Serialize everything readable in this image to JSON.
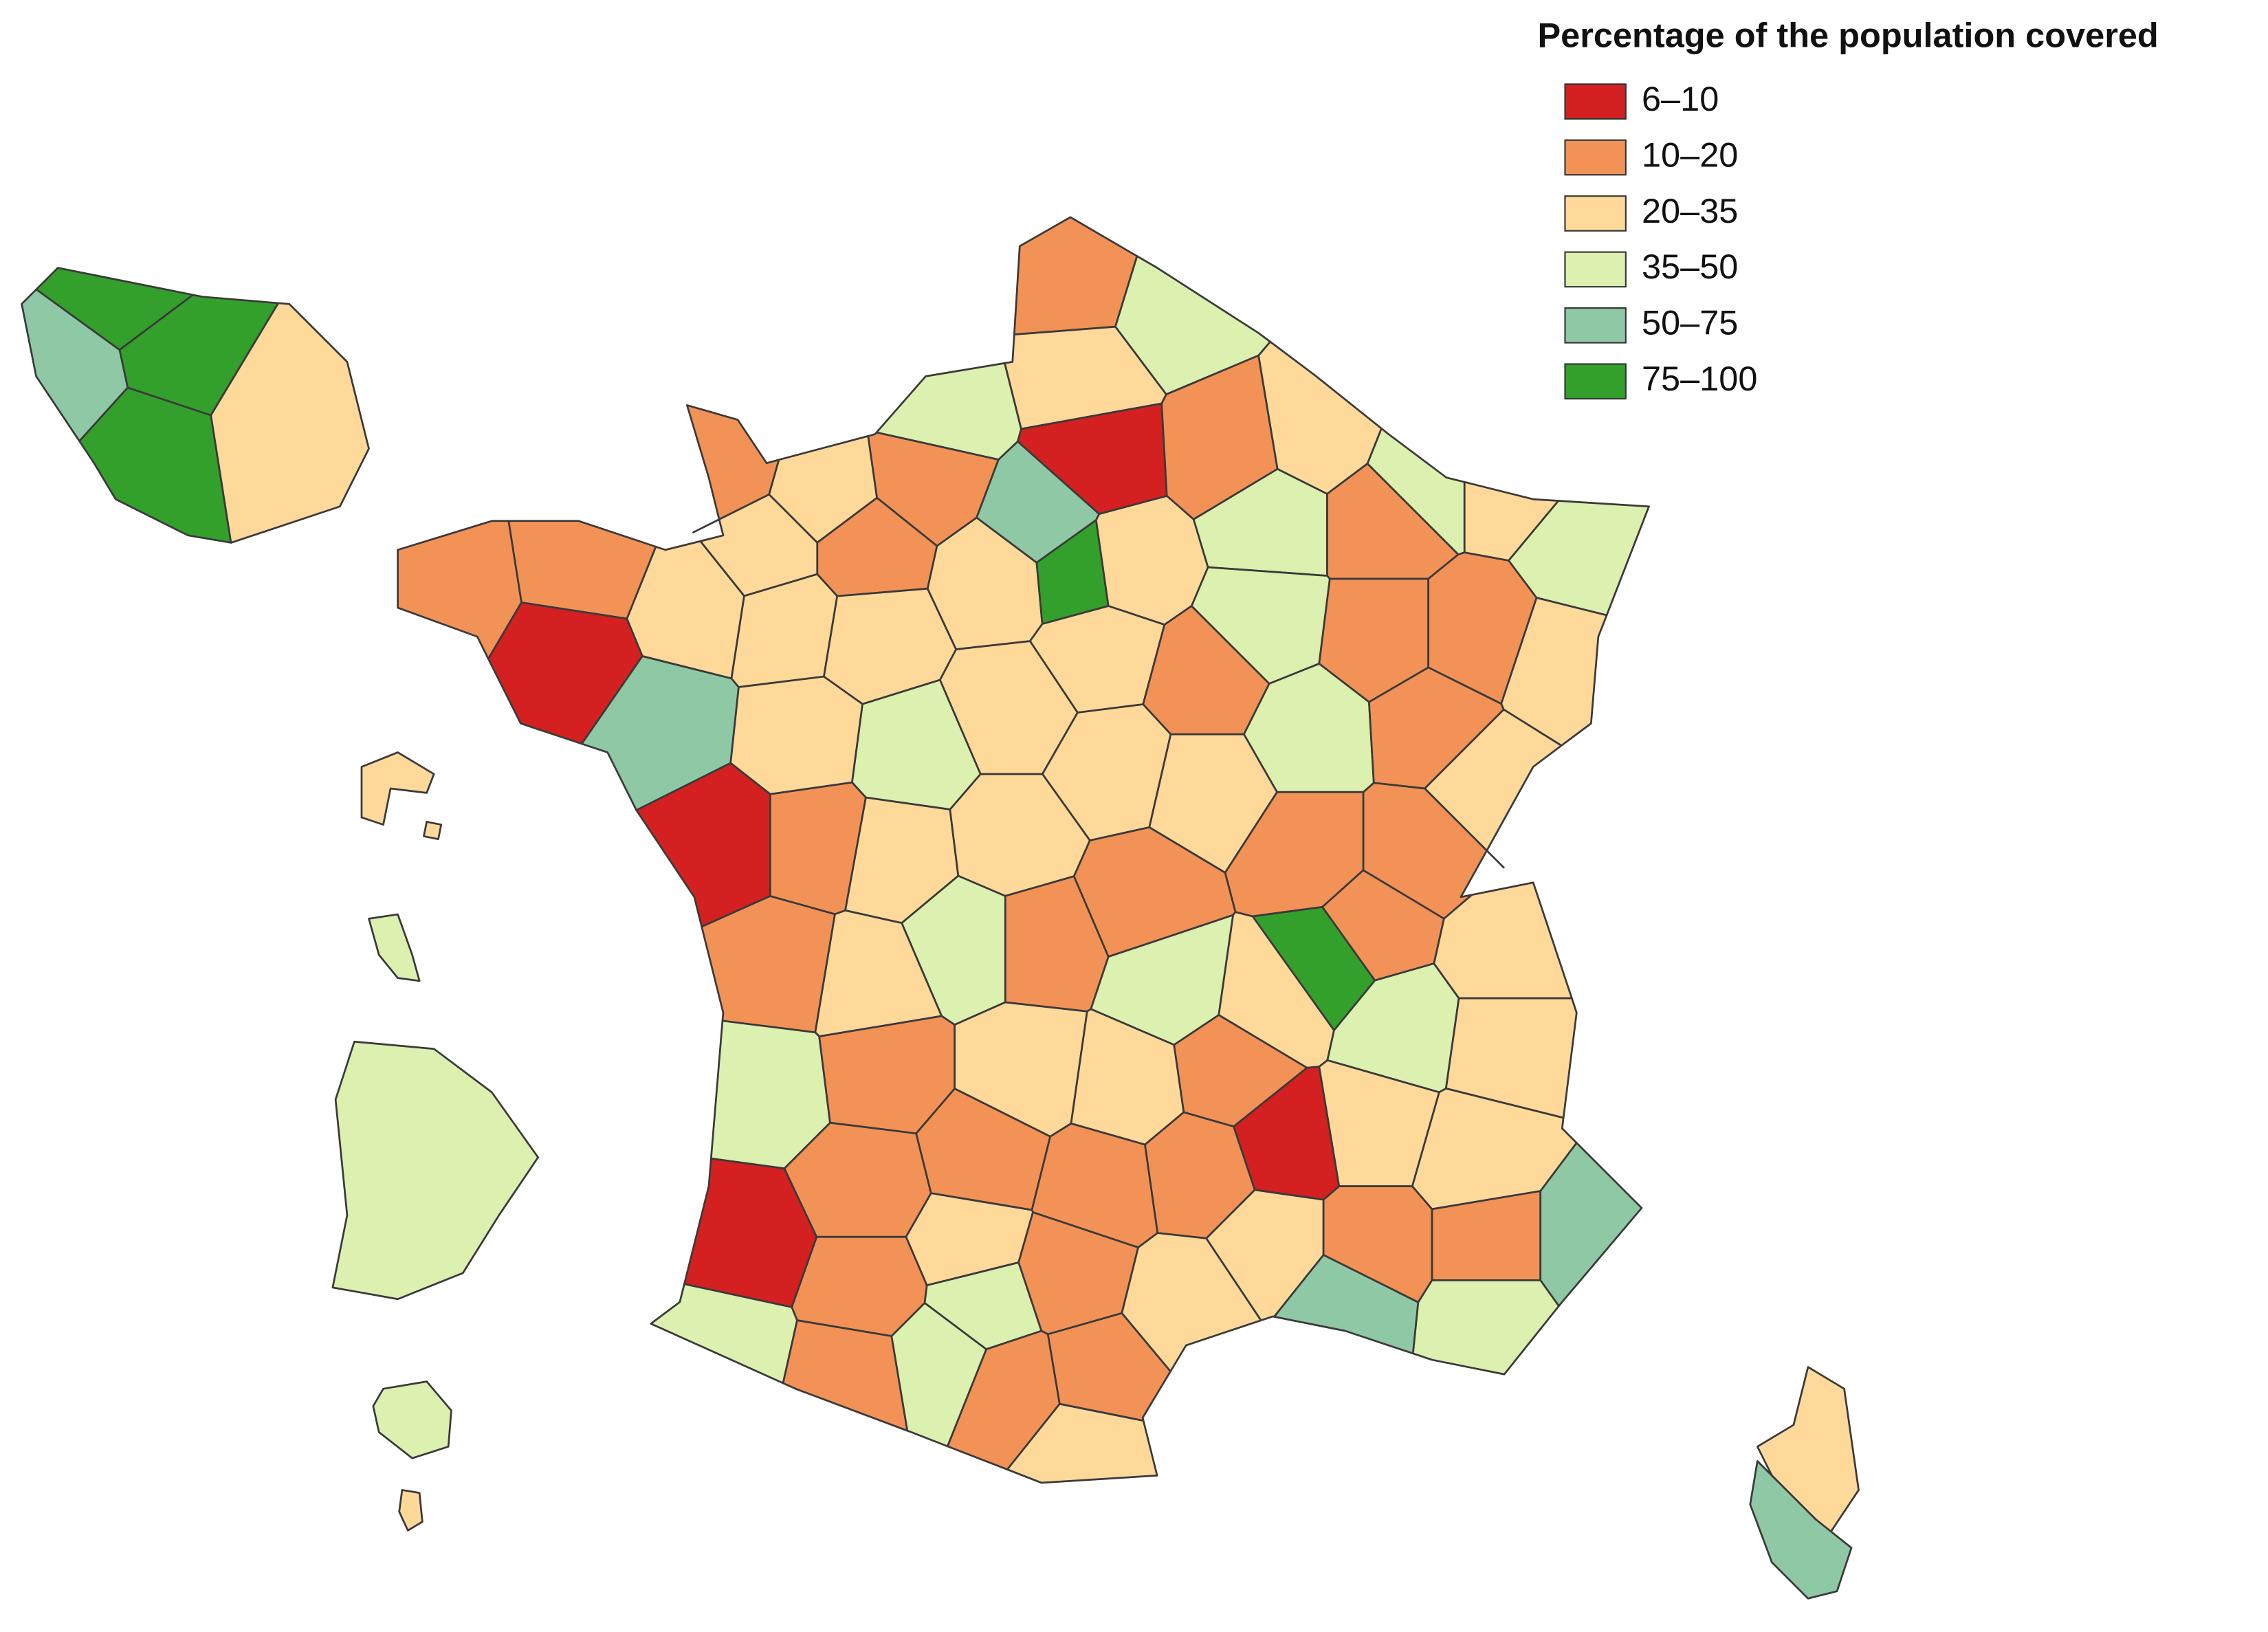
{
  "legend": {
    "title": "Percentage of the population covered",
    "items": [
      {
        "label": "6–10",
        "color": "#d42020"
      },
      {
        "label": "10–20",
        "color": "#f39257"
      },
      {
        "label": "20–35",
        "color": "#fed99a"
      },
      {
        "label": "35–50",
        "color": "#dcf0b0"
      },
      {
        "label": "50–75",
        "color": "#8fc8a5"
      },
      {
        "label": "75–100",
        "color": "#33a02c"
      }
    ]
  }
}
